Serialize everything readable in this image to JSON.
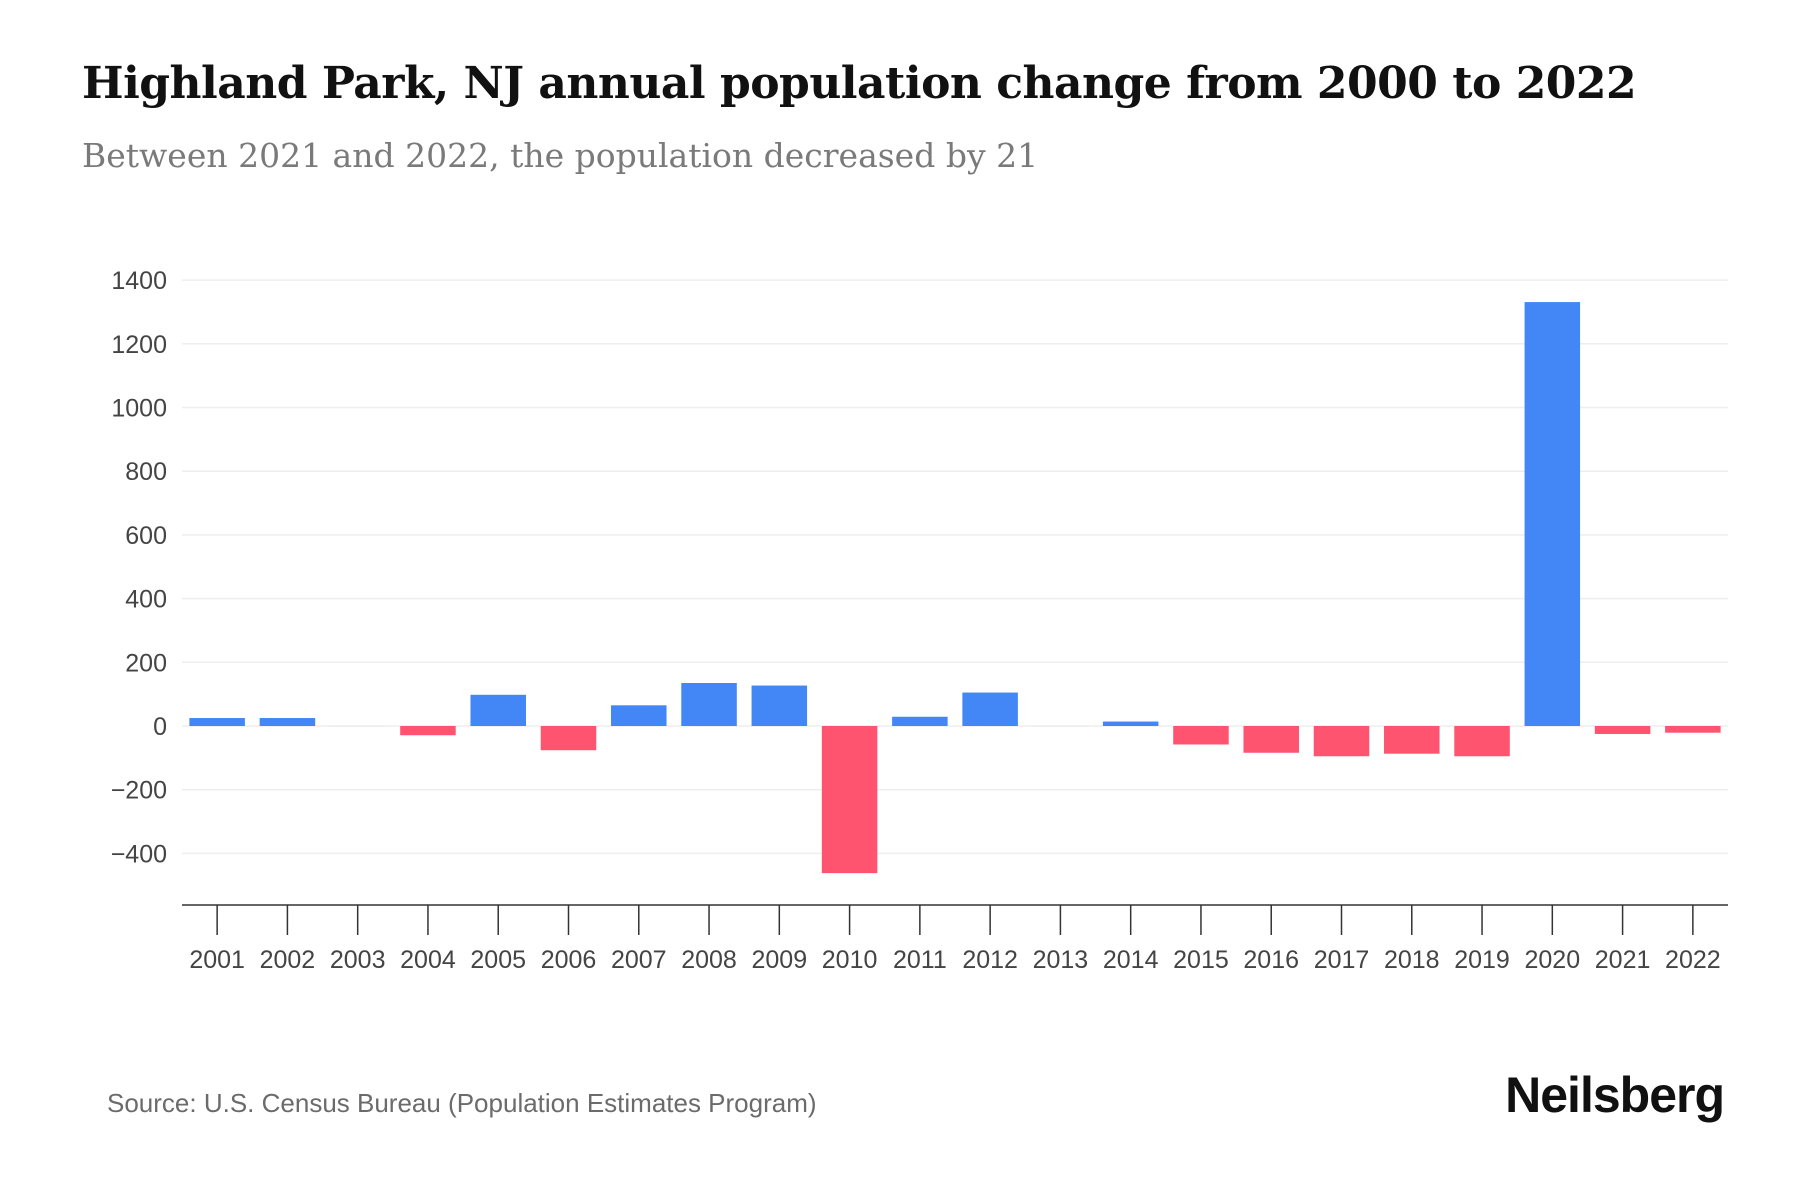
{
  "header": {
    "title": "Highland Park, NJ annual population change from 2000 to 2022",
    "subtitle": "Between 2021 and 2022, the population decreased by 21"
  },
  "footer": {
    "source": "Source: U.S. Census Bureau (Population Estimates Program)",
    "brand": "Neilsberg"
  },
  "colors": {
    "positive": "#4287f5",
    "negative": "#ff5470",
    "grid": "#eeeeee",
    "axis": "#333333"
  },
  "chart_data": {
    "type": "bar",
    "title": "Highland Park, NJ annual population change from 2000 to 2022",
    "subtitle": "Between 2021 and 2022, the population decreased by 21",
    "xlabel": "",
    "ylabel": "",
    "ylim": [
      -500,
      1400
    ],
    "yticks": [
      1400,
      1200,
      1000,
      800,
      600,
      400,
      200,
      0,
      -200,
      -400
    ],
    "ytick_labels": [
      "1400",
      "1200",
      "1000",
      "800",
      "600",
      "400",
      "200",
      "0",
      "−200",
      "−400"
    ],
    "grid": true,
    "legend": "none",
    "categories": [
      "2001",
      "2002",
      "2003",
      "2004",
      "2005",
      "2006",
      "2007",
      "2008",
      "2009",
      "2010",
      "2011",
      "2012",
      "2013",
      "2014",
      "2015",
      "2016",
      "2017",
      "2018",
      "2019",
      "2020",
      "2021",
      "2022"
    ],
    "values": [
      25,
      25,
      0,
      -29,
      98,
      -76,
      65,
      135,
      127,
      -462,
      29,
      105,
      0,
      14,
      -58,
      -84,
      -95,
      -87,
      -95,
      1331,
      -25,
      -21
    ]
  }
}
